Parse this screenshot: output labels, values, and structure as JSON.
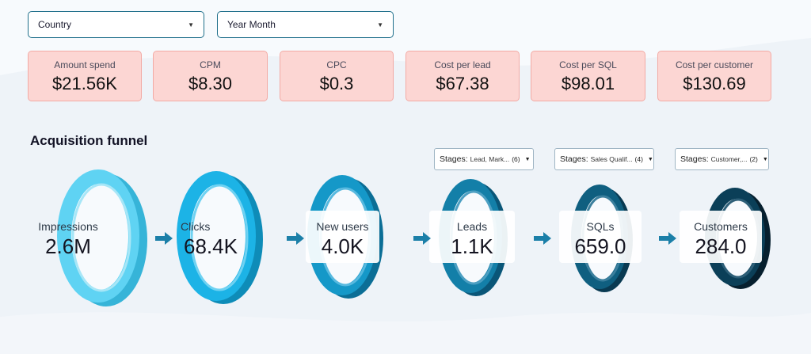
{
  "filters": {
    "country_label": "Country",
    "year_month_label": "Year Month"
  },
  "kpis": [
    {
      "label": "Amount spend",
      "value": "$21.56K"
    },
    {
      "label": "CPM",
      "value": "$8.30"
    },
    {
      "label": "CPC",
      "value": "$0.3"
    },
    {
      "label": "Cost per lead",
      "value": "$67.38"
    },
    {
      "label": "Cost per SQL",
      "value": "$98.01"
    },
    {
      "label": "Cost per customer",
      "value": "$130.69"
    }
  ],
  "funnel": {
    "title": "Acquisition funnel",
    "stage_selectors": [
      {
        "label": "Stages:",
        "value": "Lead, Mark...",
        "count": "(6)"
      },
      {
        "label": "Stages:",
        "value": "Sales Qualif...",
        "count": "(4)"
      },
      {
        "label": "Stages:",
        "value": "Customer,...",
        "count": "(2)"
      }
    ],
    "stages": [
      {
        "name": "Impressions",
        "value": "2.6M",
        "color": "#5fd3f3"
      },
      {
        "name": "Clicks",
        "value": "68.4K",
        "color": "#1cb3e6"
      },
      {
        "name": "New users",
        "value": "4.0K",
        "color": "#1598c8"
      },
      {
        "name": "Leads",
        "value": "1.1K",
        "color": "#137fa8"
      },
      {
        "name": "SQLs",
        "value": "659.0",
        "color": "#0f5f80"
      },
      {
        "name": "Customers",
        "value": "284.0",
        "color": "#0b3f58"
      }
    ],
    "arrow_color": "#1b7fa8"
  }
}
